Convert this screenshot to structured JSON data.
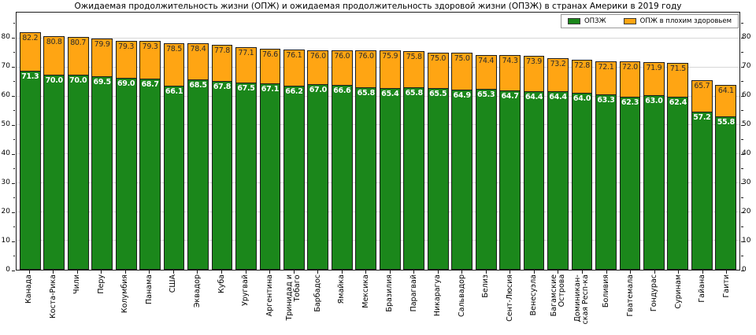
{
  "title": "Ожидаемая продолжительность жизни (ОПЖ) и ожидаемая продолжительность здоровой жизни (ОПЗЖ) в странах Америки в 2019 году",
  "legend": {
    "items": [
      {
        "label": "ОПЗЖ",
        "color": "#1b871b"
      },
      {
        "label": "ОПЖ в плохим здоровьем",
        "color": "#ffa513"
      }
    ]
  },
  "colors": {
    "healthy": "#1b871b",
    "unhealthy": "#ffa513",
    "bar_edge": "#1c1c1c",
    "grid": "#d6d6d6",
    "total_label": "#2b2b2b",
    "healthy_label": "#ffffff"
  },
  "y_axis": {
    "major_ticks": [
      0,
      10,
      20,
      30,
      40,
      50,
      60,
      70,
      80
    ],
    "minor_ticks": [
      5,
      15,
      25,
      35,
      45,
      55,
      65,
      75,
      85
    ],
    "max": 89
  },
  "chart_data": {
    "type": "bar",
    "stacked": true,
    "grid": true,
    "legend_position": "upper right",
    "title": "Ожидаемая продолжительность жизни (ОПЖ) и ожидаемая продолжительность здоровой жизни (ОПЗЖ) в странах Америки в 2019 году",
    "xlabel": "",
    "ylabel": "",
    "ylim": [
      0,
      89
    ],
    "yticks": [
      0,
      10,
      20,
      30,
      40,
      50,
      60,
      70,
      80
    ],
    "series_names": [
      "ОПЗЖ",
      "ОПЖ в плохим здоровьем"
    ],
    "note": "total = ОПЖ (life expectancy), healthy = ОПЗЖ (healthy life expectancy); orange segment = total - healthy",
    "bars": [
      {
        "country": "Канада",
        "total": 82.2,
        "healthy": 71.3
      },
      {
        "country": "Коста-Рика",
        "total": 80.8,
        "healthy": 70.0
      },
      {
        "country": "Чили",
        "total": 80.7,
        "healthy": 70.0
      },
      {
        "country": "Перу",
        "total": 79.9,
        "healthy": 69.5
      },
      {
        "country": "Колумбия",
        "total": 79.3,
        "healthy": 69.0
      },
      {
        "country": "Панама",
        "total": 79.3,
        "healthy": 68.7
      },
      {
        "country": "США",
        "total": 78.5,
        "healthy": 66.1
      },
      {
        "country": "Эквадор",
        "total": 78.4,
        "healthy": 68.5
      },
      {
        "country": "Куба",
        "total": 77.8,
        "healthy": 67.8
      },
      {
        "country": "Уругвай",
        "total": 77.1,
        "healthy": 67.5
      },
      {
        "country": "Аргентина",
        "total": 76.6,
        "healthy": 67.1
      },
      {
        "country": "Тринидад и\nТобаго",
        "total": 76.1,
        "healthy": 66.2
      },
      {
        "country": "Барбадос",
        "total": 76.0,
        "healthy": 67.0
      },
      {
        "country": "Ямайка",
        "total": 76.0,
        "healthy": 66.6
      },
      {
        "country": "Мексика",
        "total": 76.0,
        "healthy": 65.8
      },
      {
        "country": "Бразилия",
        "total": 75.9,
        "healthy": 65.4
      },
      {
        "country": "Парагвай",
        "total": 75.8,
        "healthy": 65.8
      },
      {
        "country": "Никарагуа",
        "total": 75.0,
        "healthy": 65.5
      },
      {
        "country": "Сальвадор",
        "total": 75.0,
        "healthy": 64.9
      },
      {
        "country": "Белиз",
        "total": 74.4,
        "healthy": 65.3
      },
      {
        "country": "Сент-Люсия",
        "total": 74.3,
        "healthy": 64.7
      },
      {
        "country": "Венесуэла",
        "total": 73.9,
        "healthy": 64.4
      },
      {
        "country": "Багамские\nОстрова",
        "total": 73.2,
        "healthy": 64.4
      },
      {
        "country": "Доминикан-\nская Респ-ка",
        "total": 72.8,
        "healthy": 64.0
      },
      {
        "country": "Боливия",
        "total": 72.1,
        "healthy": 63.3
      },
      {
        "country": "Гватемала",
        "total": 72.0,
        "healthy": 62.3
      },
      {
        "country": "Гондурас",
        "total": 71.9,
        "healthy": 63.0
      },
      {
        "country": "Суринам",
        "total": 71.5,
        "healthy": 62.4
      },
      {
        "country": "Гайана",
        "total": 65.7,
        "healthy": 57.2
      },
      {
        "country": "Гаити",
        "total": 64.1,
        "healthy": 55.8
      }
    ]
  }
}
